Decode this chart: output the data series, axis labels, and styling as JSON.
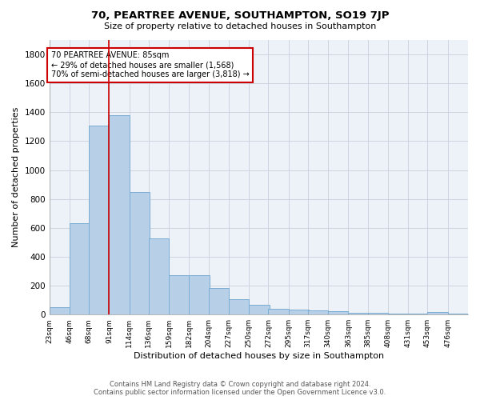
{
  "title1": "70, PEARTREE AVENUE, SOUTHAMPTON, SO19 7JP",
  "title2": "Size of property relative to detached houses in Southampton",
  "xlabel": "Distribution of detached houses by size in Southampton",
  "ylabel": "Number of detached properties",
  "annotation_line1": "70 PEARTREE AVENUE: 85sqm",
  "annotation_line2": "← 29% of detached houses are smaller (1,568)",
  "annotation_line3": "70% of semi-detached houses are larger (3,818) →",
  "property_size": 85,
  "bins": [
    23,
    46,
    68,
    91,
    114,
    136,
    159,
    182,
    204,
    227,
    250,
    272,
    295,
    317,
    340,
    363,
    385,
    408,
    431,
    453,
    476
  ],
  "counts": [
    50,
    635,
    1305,
    1380,
    850,
    525,
    275,
    275,
    185,
    105,
    65,
    40,
    35,
    30,
    22,
    10,
    10,
    5,
    5,
    15,
    5
  ],
  "bar_color": "#b8cfe8",
  "bar_edge_color": "#7aadd4",
  "vline_color": "#cc0000",
  "vline_x": 91,
  "annotation_box_color": "#cc0000",
  "background_color": "#edf1f8",
  "grid_color": "#c8d0dc",
  "ylim": [
    0,
    1900
  ],
  "yticks": [
    0,
    200,
    400,
    600,
    800,
    1000,
    1200,
    1400,
    1600,
    1800
  ],
  "footer1": "Contains HM Land Registry data © Crown copyright and database right 2024.",
  "footer2": "Contains public sector information licensed under the Open Government Licence v3.0."
}
